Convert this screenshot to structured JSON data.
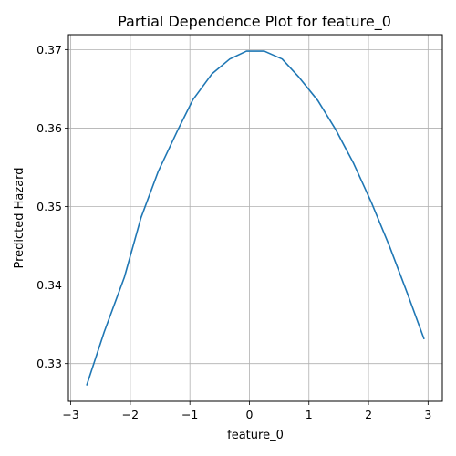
{
  "chart_data": {
    "type": "line",
    "title": "Partial Dependence Plot for feature_0",
    "xlabel": "feature_0",
    "ylabel": "Predicted Hazard",
    "xlim": [
      -3.04,
      3.24
    ],
    "ylim": [
      0.3252,
      0.3719
    ],
    "xticks": [
      -3,
      -2,
      -1,
      0,
      1,
      2,
      3
    ],
    "xtick_labels": [
      "−3",
      "−2",
      "−1",
      "0",
      "1",
      "2",
      "3"
    ],
    "yticks": [
      0.33,
      0.34,
      0.35,
      0.36,
      0.37
    ],
    "ytick_labels": [
      "0.33",
      "0.34",
      "0.35",
      "0.36",
      "0.37"
    ],
    "grid": true,
    "color": "#1f77b4",
    "series": [
      {
        "x": [
          -2.73,
          -2.44,
          -2.1,
          -1.82,
          -1.53,
          -1.2,
          -0.95,
          -0.63,
          -0.33,
          -0.05,
          0.25,
          0.55,
          0.83,
          1.15,
          1.45,
          1.75,
          2.05,
          2.35,
          2.65,
          2.93
        ],
        "y": [
          0.3273,
          0.334,
          0.341,
          0.3486,
          0.3545,
          0.3598,
          0.3636,
          0.3669,
          0.3688,
          0.3698,
          0.3698,
          0.3688,
          0.3665,
          0.3635,
          0.3598,
          0.3555,
          0.3505,
          0.345,
          0.339,
          0.3332
        ]
      }
    ]
  }
}
